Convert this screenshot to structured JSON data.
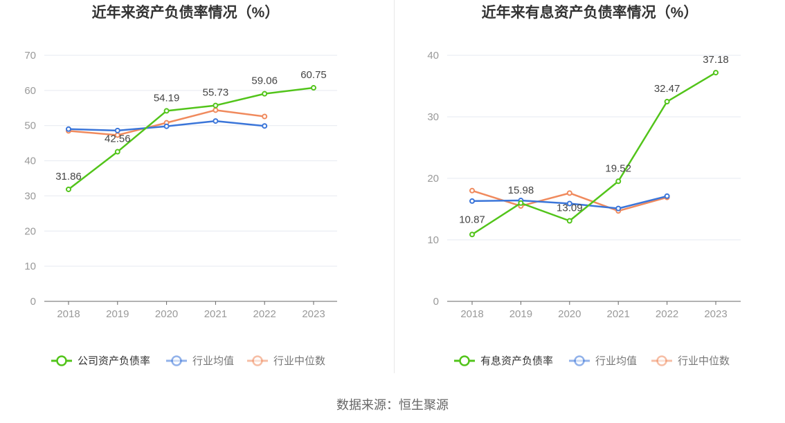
{
  "source": "数据来源：恒生聚源",
  "chart_data": [
    {
      "type": "line",
      "title": "近年来资产负债率情况（%）",
      "categories": [
        "2018",
        "2019",
        "2020",
        "2021",
        "2022",
        "2023"
      ],
      "ylim": [
        0,
        70
      ],
      "yticks": [
        0,
        10,
        20,
        30,
        40,
        50,
        60,
        70
      ],
      "grid": true,
      "legend_position": "bottom",
      "series": [
        {
          "name": "公司资产负债率",
          "color": "#52c41a",
          "values": [
            31.86,
            42.56,
            54.19,
            55.73,
            59.06,
            60.75
          ],
          "labels": [
            "31.86",
            "42.56",
            "54.19",
            "55.73",
            "59.06",
            "60.75"
          ]
        },
        {
          "name": "行业均值",
          "color": "#3a75d9",
          "values": [
            49.0,
            48.6,
            49.8,
            51.3,
            49.9,
            null
          ]
        },
        {
          "name": "行业中位数",
          "color": "#f08a5d",
          "values": [
            48.5,
            47.3,
            50.8,
            54.4,
            52.6,
            null
          ]
        }
      ]
    },
    {
      "type": "line",
      "title": "近年来有息资产负债率情况（%）",
      "categories": [
        "2018",
        "2019",
        "2020",
        "2021",
        "2022",
        "2023"
      ],
      "ylim": [
        0,
        40
      ],
      "yticks": [
        0,
        10,
        20,
        30,
        40
      ],
      "grid": true,
      "legend_position": "bottom",
      "series": [
        {
          "name": "有息资产负债率",
          "color": "#52c41a",
          "values": [
            10.87,
            15.98,
            13.09,
            19.52,
            32.47,
            37.18
          ],
          "labels": [
            "10.87",
            "15.98",
            "13.09",
            "19.52",
            "32.47",
            "37.18"
          ]
        },
        {
          "name": "行业均值",
          "color": "#3a75d9",
          "values": [
            16.3,
            16.4,
            15.9,
            15.1,
            17.1,
            null
          ]
        },
        {
          "name": "行业中位数",
          "color": "#f08a5d",
          "values": [
            18.0,
            15.5,
            17.6,
            14.7,
            16.9,
            null
          ]
        }
      ]
    }
  ]
}
